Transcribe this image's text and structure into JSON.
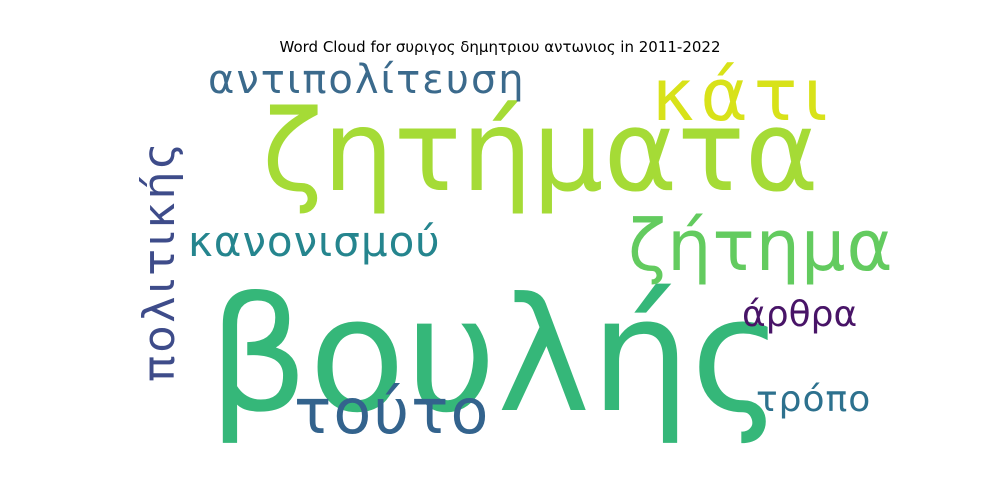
{
  "title": "Word Cloud for συριγος δημητριου αντωνιος in 2011-2022",
  "words": [
    {
      "text": "βουλής",
      "color": "#35b779",
      "orientation": "horizontal"
    },
    {
      "text": "ζητήματα",
      "color": "#a5db36",
      "orientation": "horizontal"
    },
    {
      "text": "κάτι",
      "color": "#d8e219",
      "orientation": "horizontal"
    },
    {
      "text": "αντιπολίτευση",
      "color": "#3b6a8c",
      "orientation": "horizontal"
    },
    {
      "text": "ζήτημα",
      "color": "#63cb5f",
      "orientation": "horizontal"
    },
    {
      "text": "κανονισμού",
      "color": "#25858e",
      "orientation": "horizontal"
    },
    {
      "text": "πολιτικής",
      "color": "#3e4c8a",
      "orientation": "vertical"
    },
    {
      "text": "τούτο",
      "color": "#33638d",
      "orientation": "horizontal"
    },
    {
      "text": "άρθρα",
      "color": "#481467",
      "orientation": "horizontal"
    },
    {
      "text": "τρόπο",
      "color": "#2d718e",
      "orientation": "horizontal"
    }
  ]
}
